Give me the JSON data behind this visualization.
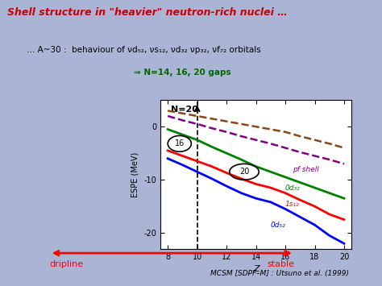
{
  "title": "Shell structure in \"heavier\" neutron-rich nuclei …",
  "subtitle_line1": "… A~30 :  behaviour of νd₅₂, νs₁₂, νd₃₂ νp₃₂, νf₇₂ orbitals",
  "subtitle_line2": "⇒ N=14, 16, 20 gaps",
  "bg_color": "#aab4d4",
  "plot_bg": "#ffffff",
  "title_color": "#cc0000",
  "subtitle_color_main": "#000000",
  "ylabel": "ESPE (MeV)",
  "xlabel": "Z",
  "xlim": [
    7.5,
    20.5
  ],
  "ylim": [
    -23,
    5
  ],
  "dripline_label": "dripline",
  "stable_label": "stable",
  "reference": "MCSM [SDPF–M] : Utsuno et al. (1999)",
  "N20_label": "N=20",
  "pf_label": "pf shell",
  "od32_label": "0d₃₂",
  "s12_label": "1s₁₂",
  "od52_label": "0d₅₂",
  "label16": "16",
  "label20": "20"
}
